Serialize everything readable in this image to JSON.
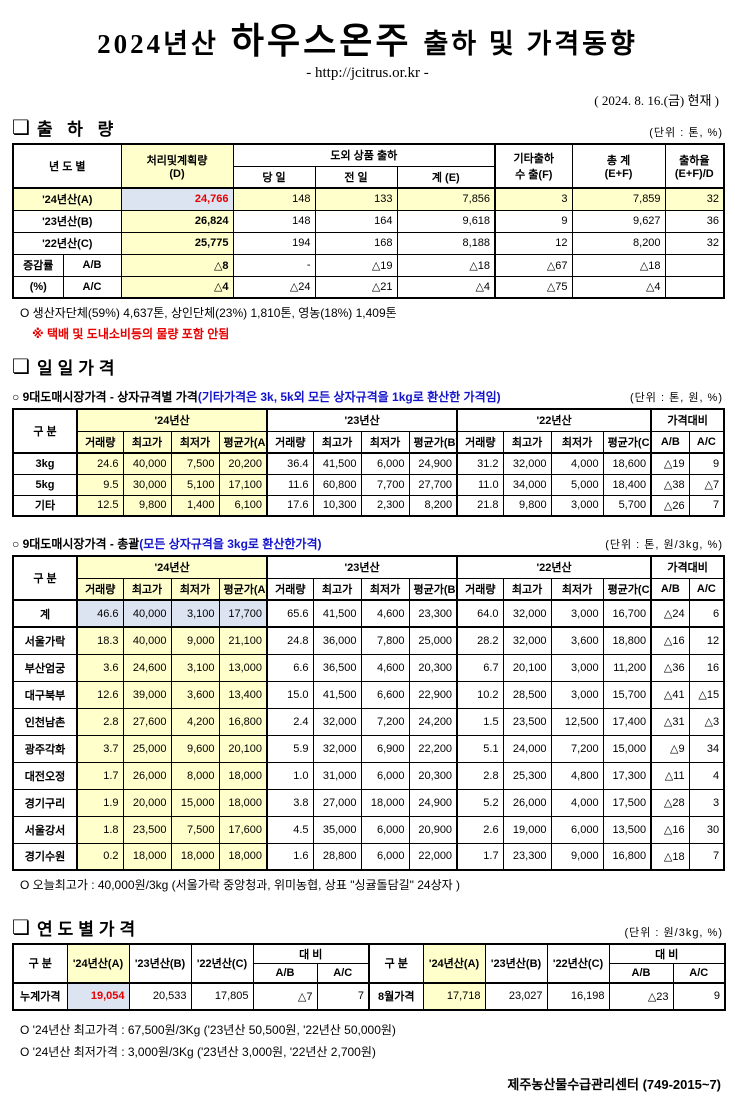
{
  "header": {
    "year": "2024년산",
    "product": "하우스온주",
    "suffix": "출하 및 가격동향",
    "url": "- http://jcitrus.or.kr -",
    "as_of": "( 2024. 8. 16.(금) 현재 )"
  },
  "shipment": {
    "title": "출 하 량",
    "unit": "(단위 : 톤, %)",
    "col_year": "년 도 별",
    "col_plan": "처리및계획량",
    "col_plan2": "(D)",
    "col_group_outbound": "도외 상품 출하",
    "col_today": "당 일",
    "col_prev": "전 일",
    "col_sum": "계 (E)",
    "col_etc1": "기타출하",
    "col_etc2": "수 출(F)",
    "col_total1": "총   계",
    "col_total2": "(E+F)",
    "col_rate1": "출하율",
    "col_rate2": "(E+F)/D",
    "rows": [
      {
        "highlight": true,
        "cells": [
          "'24년산(A)",
          "24,766",
          "148",
          "133",
          "7,856",
          "3",
          "7,859",
          "32"
        ]
      },
      {
        "cells": [
          "'23년산(B)",
          "26,824",
          "148",
          "164",
          "9,618",
          "9",
          "9,627",
          "36"
        ]
      },
      {
        "cells": [
          "'22년산(C)",
          "25,775",
          "194",
          "168",
          "8,188",
          "12",
          "8,200",
          "32"
        ]
      }
    ],
    "change_label1": "증감률",
    "change_label2": "(%)",
    "change_rows": [
      {
        "label": "A/B",
        "cells": [
          "△8",
          "-",
          "△19",
          "△18",
          "△67",
          "△18",
          ""
        ]
      },
      {
        "label": "A/C",
        "cells": [
          "△4",
          "△24",
          "△21",
          "△4",
          "△75",
          "△4",
          ""
        ]
      }
    ],
    "note1": "O 생산자단체(59%) 4,637톤, 상인단체(23%) 1,810톤, 영농(18%) 1,409톤",
    "note2": "※ 택배 및 도내소비등의 물량 포함 안됨"
  },
  "daily": {
    "title": "일일가격",
    "th": {
      "label": "구  분",
      "g24": "'24년산",
      "g23": "'23년산",
      "g22": "'22년산",
      "s24": [
        "거래량",
        "최고가",
        "최저가",
        "평균가(A)"
      ],
      "s23": [
        "거래량",
        "최고가",
        "최저가",
        "평균가(B)"
      ],
      "s22": [
        "거래량",
        "최고가",
        "최저가",
        "평균가(C)"
      ],
      "cmp": "가격대비",
      "ab": "A/B",
      "ac": "A/C"
    },
    "by_box": {
      "subtitle": "○ 9대도매시장가격 - 상자규격별 가격",
      "subtitle_note": "(기타가격은 3k, 5k외 모든 상자규격을 1kg로 환산한 가격임)",
      "unit": "(단위 : 톤,  원, %)",
      "rows": [
        {
          "cells": [
            "3kg",
            "24.6",
            "40,000",
            "7,500",
            "20,200",
            "36.4",
            "41,500",
            "6,000",
            "24,900",
            "31.2",
            "32,000",
            "4,000",
            "18,600",
            "△19",
            "9"
          ]
        },
        {
          "cells": [
            "5kg",
            "9.5",
            "30,000",
            "5,100",
            "17,100",
            "11.6",
            "60,800",
            "7,700",
            "27,700",
            "11.0",
            "34,000",
            "5,000",
            "18,400",
            "△38",
            "△7"
          ]
        },
        {
          "cells": [
            "기타",
            "12.5",
            "9,800",
            "1,400",
            "6,100",
            "17.6",
            "10,300",
            "2,300",
            "8,200",
            "21.8",
            "9,800",
            "3,000",
            "5,700",
            "△26",
            "7"
          ]
        }
      ]
    },
    "overall": {
      "subtitle": "○ 9대도매시장가격 - 총괄",
      "subtitle_note": "(모든 상자규격을 3kg로 환산한가격)",
      "unit": "(단위 : 톤, 원/3kg, %)",
      "rows": [
        {
          "highlight": true,
          "cells": [
            "계",
            "46.6",
            "40,000",
            "3,100",
            "17,700",
            "65.6",
            "41,500",
            "4,600",
            "23,300",
            "64.0",
            "32,000",
            "3,000",
            "16,700",
            "△24",
            "6"
          ]
        },
        {
          "cells": [
            "서울가락",
            "18.3",
            "40,000",
            "9,000",
            "21,100",
            "24.8",
            "36,000",
            "7,800",
            "25,000",
            "28.2",
            "32,000",
            "3,600",
            "18,800",
            "△16",
            "12"
          ]
        },
        {
          "cells": [
            "부산엄궁",
            "3.6",
            "24,600",
            "3,100",
            "13,000",
            "6.6",
            "36,500",
            "4,600",
            "20,300",
            "6.7",
            "20,100",
            "3,000",
            "11,200",
            "△36",
            "16"
          ]
        },
        {
          "cells": [
            "대구북부",
            "12.6",
            "39,000",
            "3,600",
            "13,400",
            "15.0",
            "41,500",
            "6,600",
            "22,900",
            "10.2",
            "28,500",
            "3,000",
            "15,700",
            "△41",
            "△15"
          ]
        },
        {
          "cells": [
            "인천남촌",
            "2.8",
            "27,600",
            "4,200",
            "16,800",
            "2.4",
            "32,000",
            "7,200",
            "24,200",
            "1.5",
            "23,500",
            "12,500",
            "17,400",
            "△31",
            "△3"
          ]
        },
        {
          "cells": [
            "광주각화",
            "3.7",
            "25,000",
            "9,600",
            "20,100",
            "5.9",
            "32,000",
            "6,900",
            "22,200",
            "5.1",
            "24,000",
            "7,200",
            "15,000",
            "△9",
            "34"
          ]
        },
        {
          "cells": [
            "대전오정",
            "1.7",
            "26,000",
            "8,000",
            "18,000",
            "1.0",
            "31,000",
            "6,000",
            "20,300",
            "2.8",
            "25,300",
            "4,800",
            "17,300",
            "△11",
            "4"
          ]
        },
        {
          "cells": [
            "경기구리",
            "1.9",
            "20,000",
            "15,000",
            "18,000",
            "3.8",
            "27,000",
            "18,000",
            "24,900",
            "5.2",
            "26,000",
            "4,000",
            "17,500",
            "△28",
            "3"
          ]
        },
        {
          "cells": [
            "서울강서",
            "1.8",
            "23,500",
            "7,500",
            "17,600",
            "4.5",
            "35,000",
            "6,000",
            "20,900",
            "2.6",
            "19,000",
            "6,000",
            "13,500",
            "△16",
            "30"
          ]
        },
        {
          "cells": [
            "경기수원",
            "0.2",
            "18,000",
            "18,000",
            "18,000",
            "1.6",
            "28,800",
            "6,000",
            "22,000",
            "1.7",
            "23,300",
            "9,000",
            "16,800",
            "△18",
            "7"
          ]
        }
      ],
      "note": "O 오늘최고가 : 40,000원/3kg (서울가락  중앙청과,  위미농협,  상표 \"싱귤돌담길\"  24상자 )"
    }
  },
  "yearly": {
    "title": "연도별가격",
    "unit": "(단위 : 원/3kg, %)",
    "col_label": "구   분",
    "col_y24": "'24년산(A)",
    "col_y23": "'23년산(B)",
    "col_y22": "'22년산(C)",
    "cmp_header": "대      비",
    "ab": "A/B",
    "ac": "A/C",
    "left": {
      "label": "누계가격",
      "y24": "19,054",
      "y23": "20,533",
      "y22": "17,805",
      "ab": "△7",
      "ac": "7"
    },
    "right": {
      "label": "8월가격",
      "y24": "17,718",
      "y23": "23,027",
      "y22": "16,198",
      "ab": "△23",
      "ac": "9"
    }
  },
  "footer": {
    "note1": "O '24년산 최고가격 : 67,500원/3Kg ('23년산 50,500원, '22년산 50,000원)",
    "note2": "O '24년산 최저가격 :   3,000원/3Kg ('23년산   3,000원, '22년산  2,700원)",
    "org": "제주농산물수급관리센터 (749-2015~7)"
  },
  "colors": {
    "highlight_yellow": "#FFFFCC",
    "highlight_blue": "#DCE3F1",
    "accent_red": "#E60000",
    "accent_blue": "#1414CC"
  }
}
